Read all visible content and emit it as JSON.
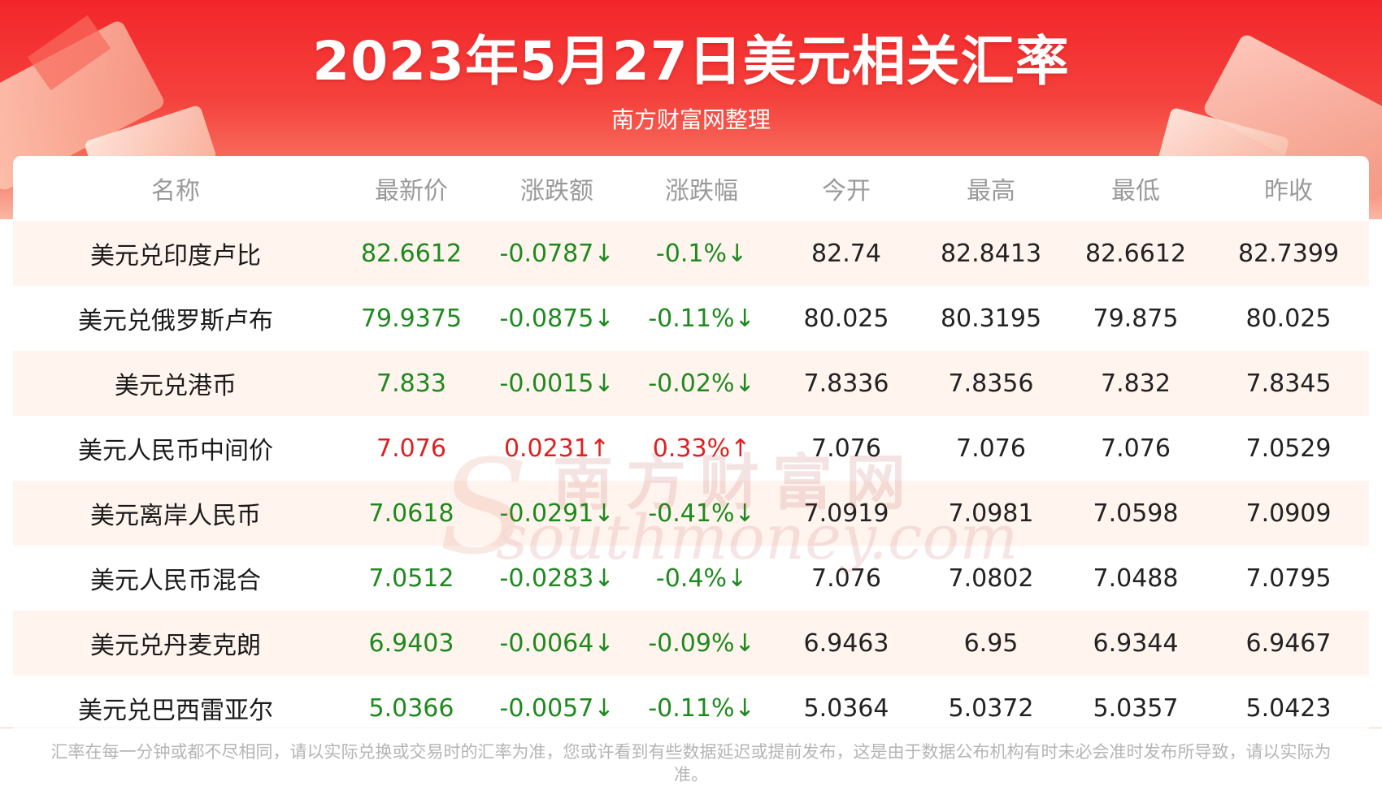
{
  "header": {
    "title": "2023年5月27日美元相关汇率",
    "subtitle": "南方财富网整理"
  },
  "table": {
    "columns": [
      "名称",
      "最新价",
      "涨跌额",
      "涨跌幅",
      "今开",
      "最高",
      "最低",
      "昨收"
    ],
    "rows": [
      {
        "name": "美元兑印度卢比",
        "latest": "82.6612",
        "change": "-0.0787↓",
        "pct": "-0.1%↓",
        "open": "82.74",
        "high": "82.8413",
        "low": "82.6612",
        "prev": "82.7399",
        "trend": "down"
      },
      {
        "name": "美元兑俄罗斯卢布",
        "latest": "79.9375",
        "change": "-0.0875↓",
        "pct": "-0.11%↓",
        "open": "80.025",
        "high": "80.3195",
        "low": "79.875",
        "prev": "80.025",
        "trend": "down"
      },
      {
        "name": "美元兑港币",
        "latest": "7.833",
        "change": "-0.0015↓",
        "pct": "-0.02%↓",
        "open": "7.8336",
        "high": "7.8356",
        "low": "7.832",
        "prev": "7.8345",
        "trend": "down"
      },
      {
        "name": "美元人民币中间价",
        "latest": "7.076",
        "change": "0.0231↑",
        "pct": "0.33%↑",
        "open": "7.076",
        "high": "7.076",
        "low": "7.076",
        "prev": "7.0529",
        "trend": "up"
      },
      {
        "name": "美元离岸人民币",
        "latest": "7.0618",
        "change": "-0.0291↓",
        "pct": "-0.41%↓",
        "open": "7.0919",
        "high": "7.0981",
        "low": "7.0598",
        "prev": "7.0909",
        "trend": "down"
      },
      {
        "name": "美元人民币混合",
        "latest": "7.0512",
        "change": "-0.0283↓",
        "pct": "-0.4%↓",
        "open": "7.076",
        "high": "7.0802",
        "low": "7.0488",
        "prev": "7.0795",
        "trend": "down"
      },
      {
        "name": "美元兑丹麦克朗",
        "latest": "6.9403",
        "change": "-0.0064↓",
        "pct": "-0.09%↓",
        "open": "6.9463",
        "high": "6.95",
        "low": "6.9344",
        "prev": "6.9467",
        "trend": "down"
      },
      {
        "name": "美元兑巴西雷亚尔",
        "latest": "5.0366",
        "change": "-0.0057↓",
        "pct": "-0.11%↓",
        "open": "5.0364",
        "high": "5.0372",
        "low": "5.0357",
        "prev": "5.0423",
        "trend": "down"
      }
    ]
  },
  "watermark": {
    "cn": "南方财富网",
    "en": "southmoney.com"
  },
  "footer": {
    "disclaimer": "汇率在每一分钟或都不尽相同，请以实际兑换或交易时的汇率为准，您或许看到有些数据延迟或提前发布，这是由于数据公布机构有时未必会准时发布所导致，请以实际为准。"
  },
  "colors": {
    "up": "#e02020",
    "down": "#1e8a1e",
    "banner": "#f3262a"
  }
}
